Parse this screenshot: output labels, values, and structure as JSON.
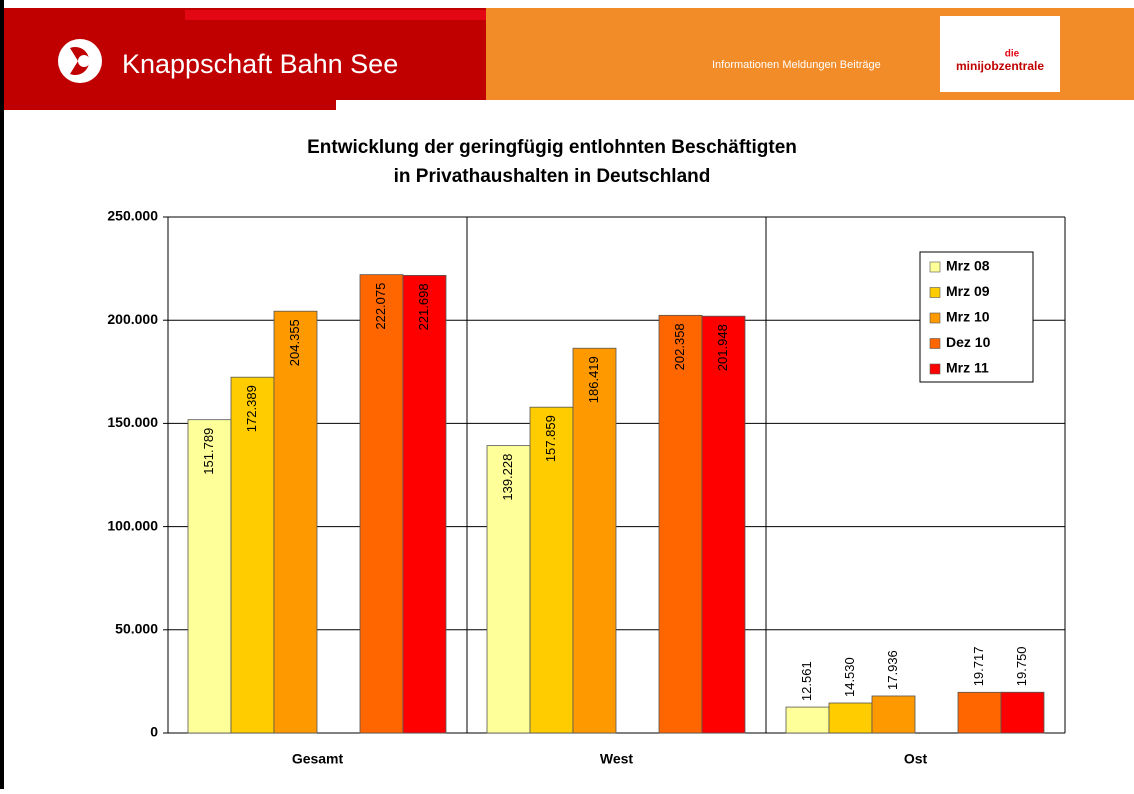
{
  "header": {
    "brand": "Knappschaft Bahn See",
    "nav": "Informationen Meldungen Beiträge",
    "logo_top": "die",
    "logo_main": "minijobzentrale"
  },
  "chart_data": {
    "type": "bar",
    "title": [
      "Entwicklung der geringfügig entlohnten Beschäftigten",
      "in Privathaushalten in Deutschland"
    ],
    "categories": [
      "Gesamt",
      "West",
      "Ost"
    ],
    "series": [
      {
        "name": "Mrz 08",
        "color": "#ffff99",
        "values": [
          151789,
          139228,
          12561
        ],
        "value_labels": [
          "151.789",
          "139.228",
          "12.561"
        ]
      },
      {
        "name": "Mrz 09",
        "color": "#ffcc00",
        "values": [
          172389,
          157859,
          14530
        ],
        "value_labels": [
          "172.389",
          "157.859",
          "14.530"
        ]
      },
      {
        "name": "Mrz 10",
        "color": "#ff9900",
        "values": [
          204355,
          186419,
          17936
        ],
        "value_labels": [
          "204.355",
          "186.419",
          "17.936"
        ]
      },
      {
        "name": "Dez 10",
        "color": "#ff6600",
        "values": [
          222075,
          202358,
          19717
        ],
        "value_labels": [
          "222.075",
          "202.358",
          "19.717"
        ]
      },
      {
        "name": "Mrz 11",
        "color": "#ff0000",
        "values": [
          221698,
          201948,
          19750
        ],
        "value_labels": [
          "221.698",
          "201.948",
          "19.750"
        ]
      }
    ],
    "ylim": [
      0,
      250000
    ],
    "yticks": [
      {
        "value": 0,
        "label": "0"
      },
      {
        "value": 50000,
        "label": "50.000"
      },
      {
        "value": 100000,
        "label": "100.000"
      },
      {
        "value": 150000,
        "label": "150.000"
      },
      {
        "value": 200000,
        "label": "200.000"
      },
      {
        "value": 250000,
        "label": "250.000"
      }
    ],
    "grid": true,
    "legend": "upper right"
  }
}
